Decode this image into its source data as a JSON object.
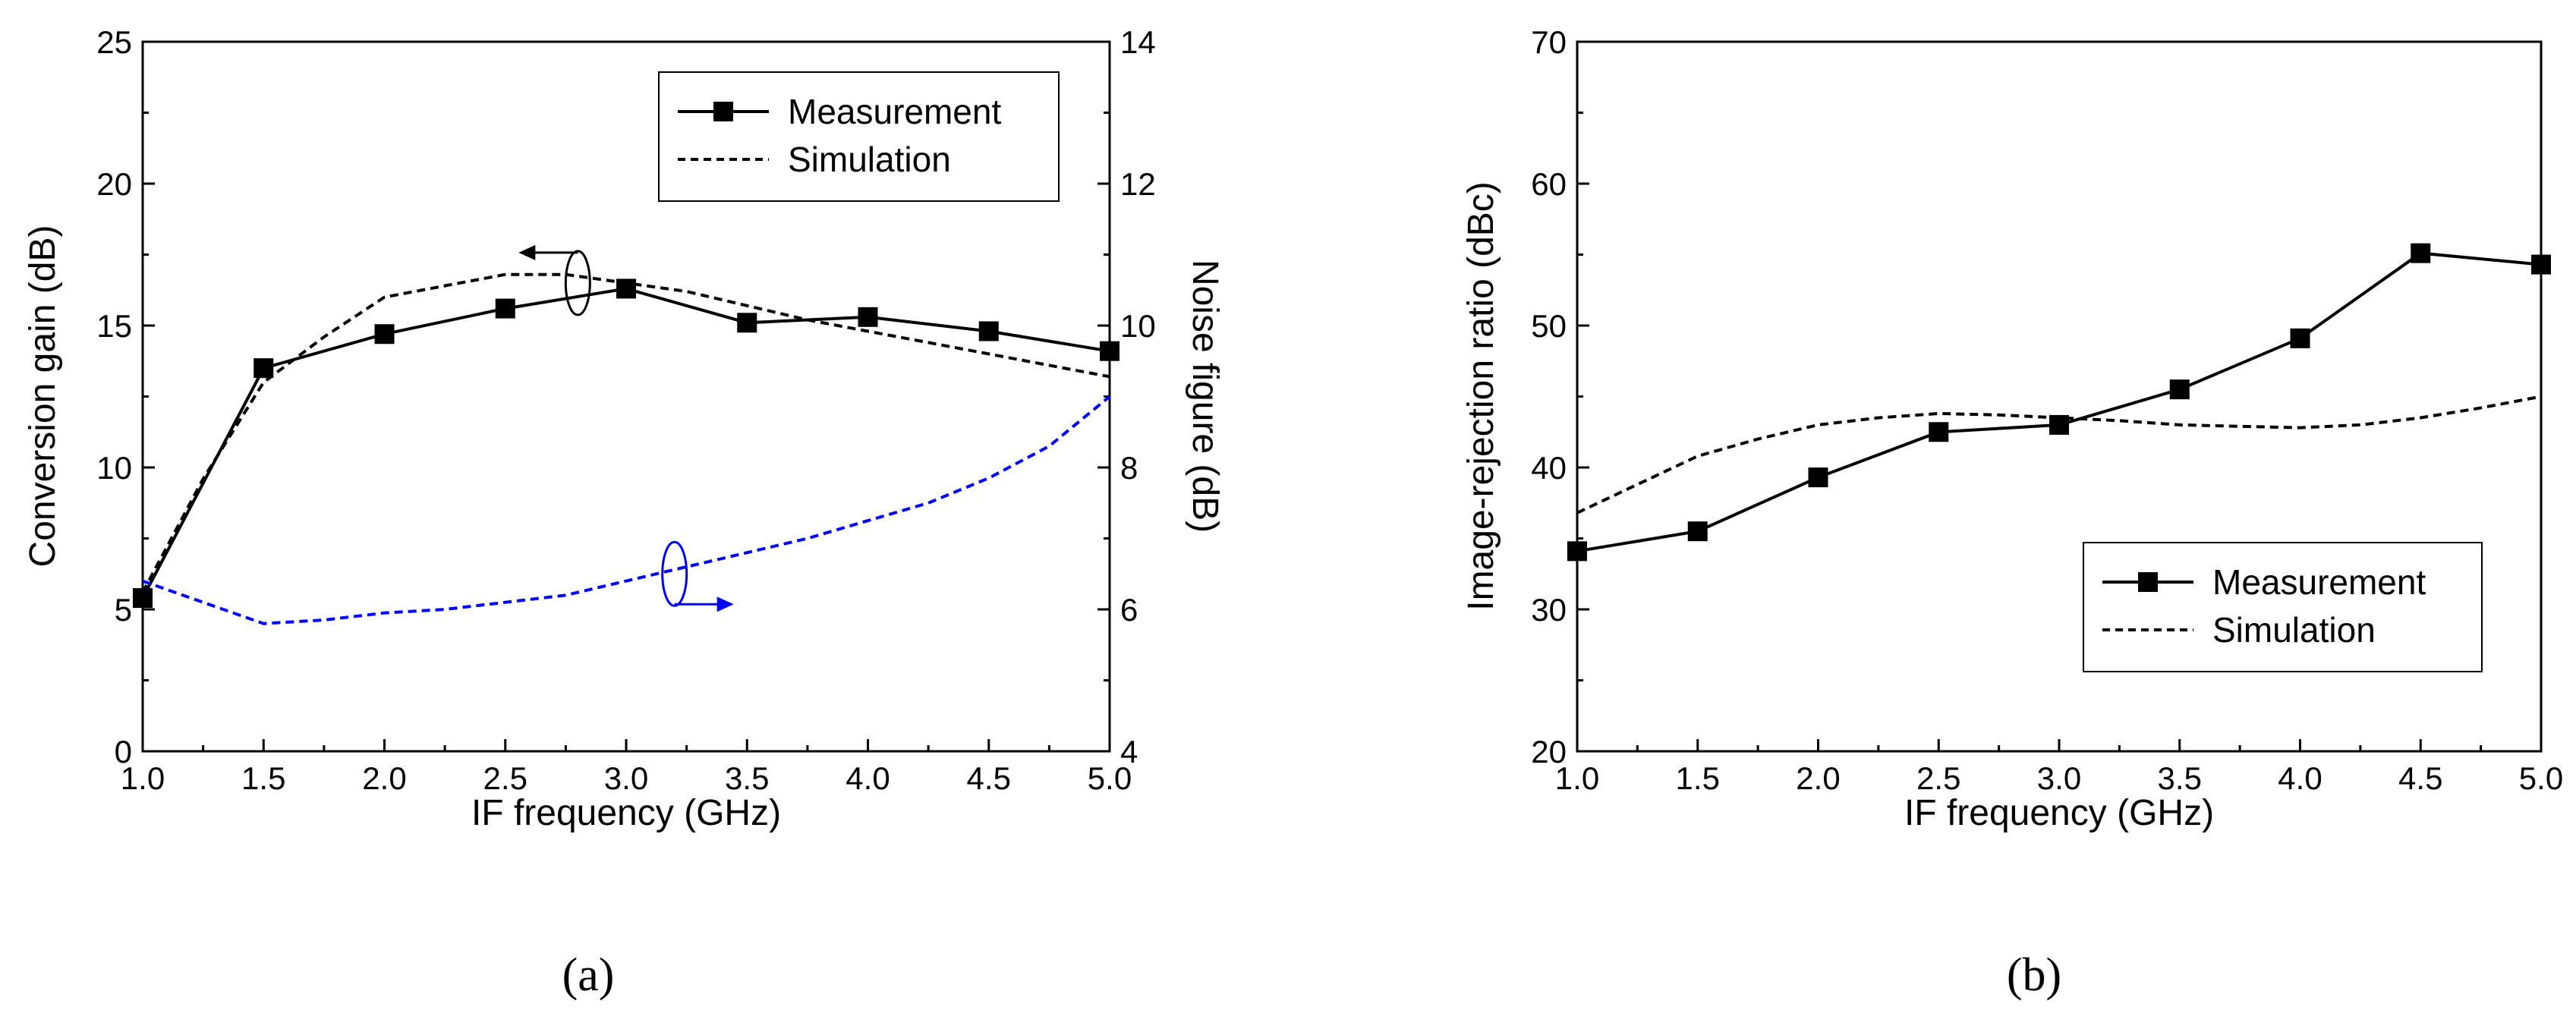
{
  "panel_labels": [
    "(a)",
    "(b)"
  ],
  "colors": {
    "measurement": "#000000",
    "simulation_gain": "#000000",
    "simulation_nf": "#0000ff",
    "axes": "#000000"
  },
  "chart_data": [
    {
      "type": "line",
      "panel": "(a)",
      "xlabel": "IF frequency (GHz)",
      "ylabel": "Conversion gain (dB)",
      "ylabel_right": "Noise figure (dB)",
      "xlim": [
        1.0,
        5.0
      ],
      "ylim": [
        0,
        25
      ],
      "ylim_right": [
        4,
        14
      ],
      "x_ticks": [
        "1.0",
        "1.5",
        "2.0",
        "2.5",
        "3.0",
        "3.5",
        "4.0",
        "4.5",
        "5.0"
      ],
      "y_ticks": [
        "0",
        "5",
        "10",
        "15",
        "20",
        "25"
      ],
      "y_ticks_right": [
        "4",
        "6",
        "8",
        "10",
        "12",
        "14"
      ],
      "legend": {
        "position": "top-right",
        "entries": [
          "Measurement",
          "Simulation"
        ]
      },
      "series": [
        {
          "name": "Measurement",
          "axis": "left",
          "style": "solid-square",
          "x": [
            1.0,
            1.5,
            2.0,
            2.5,
            3.0,
            3.5,
            4.0,
            4.5,
            5.0
          ],
          "y": [
            5.4,
            13.5,
            14.7,
            15.6,
            16.3,
            15.1,
            15.3,
            14.8,
            14.1
          ]
        },
        {
          "name": "Simulation",
          "axis": "left",
          "style": "dashed",
          "x": [
            1.0,
            1.25,
            1.5,
            1.75,
            2.0,
            2.25,
            2.5,
            2.75,
            3.0,
            3.25,
            3.5,
            3.75,
            4.0,
            4.25,
            4.5,
            4.75,
            5.0
          ],
          "y": [
            5.6,
            9.6,
            13.0,
            14.6,
            16.0,
            16.4,
            16.8,
            16.8,
            16.5,
            16.2,
            15.7,
            15.2,
            14.8,
            14.4,
            14.0,
            13.6,
            13.2
          ]
        },
        {
          "axis": "right",
          "style": "dashed-blue",
          "x": [
            1.0,
            1.25,
            1.5,
            1.75,
            2.0,
            2.25,
            2.5,
            2.75,
            3.0,
            3.25,
            3.5,
            3.75,
            4.0,
            4.25,
            4.5,
            4.75,
            5.0
          ],
          "y": [
            6.4,
            6.1,
            5.8,
            5.85,
            5.95,
            6.0,
            6.1,
            6.2,
            6.4,
            6.6,
            6.8,
            7.0,
            7.25,
            7.5,
            7.85,
            8.3,
            9.0
          ]
        }
      ],
      "annotations": [
        {
          "type": "arrow",
          "direction": "left",
          "target_axis": "left",
          "x": 2.8,
          "y": 16.5
        },
        {
          "type": "arrow",
          "direction": "right",
          "target_axis": "right",
          "x": 3.2,
          "y": 6.5
        }
      ]
    },
    {
      "type": "line",
      "panel": "(b)",
      "xlabel": "IF frequency (GHz)",
      "ylabel": "Image-rejection ratio (dBc)",
      "xlim": [
        1.0,
        5.0
      ],
      "ylim": [
        20,
        70
      ],
      "x_ticks": [
        "1.0",
        "1.5",
        "2.0",
        "2.5",
        "3.0",
        "3.5",
        "4.0",
        "4.5",
        "5.0"
      ],
      "y_ticks": [
        "20",
        "30",
        "40",
        "50",
        "60",
        "70"
      ],
      "legend": {
        "position": "center-right",
        "entries": [
          "Measurement",
          "Simulation"
        ]
      },
      "series": [
        {
          "name": "Measurement",
          "style": "solid-square",
          "x": [
            1.0,
            1.5,
            2.0,
            2.5,
            3.0,
            3.5,
            4.0,
            4.5,
            5.0
          ],
          "y": [
            34.1,
            35.5,
            39.3,
            42.5,
            43.0,
            45.5,
            49.1,
            55.1,
            54.3
          ]
        },
        {
          "name": "Simulation",
          "style": "dashed",
          "x": [
            1.0,
            1.25,
            1.5,
            1.75,
            2.0,
            2.25,
            2.5,
            2.75,
            3.0,
            3.25,
            3.5,
            3.75,
            4.0,
            4.25,
            4.5,
            4.75,
            5.0
          ],
          "y": [
            36.8,
            38.8,
            40.8,
            42.0,
            43.0,
            43.5,
            43.8,
            43.7,
            43.5,
            43.3,
            43.0,
            42.9,
            42.8,
            43.0,
            43.5,
            44.2,
            45.0
          ]
        }
      ]
    }
  ]
}
